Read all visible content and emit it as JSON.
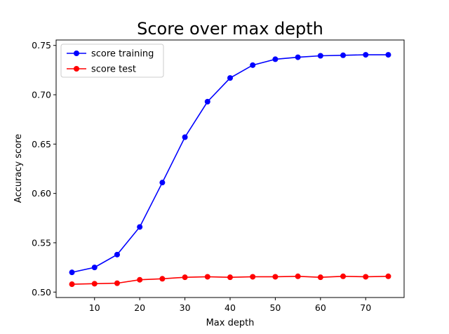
{
  "chart_data": {
    "type": "line",
    "title": "Score over max depth",
    "xlabel": "Max depth",
    "ylabel": "Accuracy score",
    "xlim": [
      1.5,
      78.5
    ],
    "ylim": [
      0.4945,
      0.7555
    ],
    "xticks": [
      10,
      20,
      30,
      40,
      50,
      60,
      70
    ],
    "xtick_labels": [
      "10",
      "20",
      "30",
      "40",
      "50",
      "60",
      "70"
    ],
    "yticks": [
      0.5,
      0.55,
      0.6,
      0.65,
      0.7,
      0.75
    ],
    "ytick_labels": [
      "0.50",
      "0.55",
      "0.60",
      "0.65",
      "0.70",
      "0.75"
    ],
    "grid": false,
    "legend_position": "upper-left",
    "x": [
      5,
      10,
      15,
      20,
      25,
      30,
      35,
      40,
      45,
      50,
      55,
      60,
      65,
      70,
      75
    ],
    "series": [
      {
        "name": "score training",
        "color": "#0000ff",
        "values": [
          0.52,
          0.525,
          0.538,
          0.566,
          0.611,
          0.657,
          0.693,
          0.717,
          0.73,
          0.736,
          0.738,
          0.7395,
          0.74,
          0.7405,
          0.7405
        ]
      },
      {
        "name": "score test",
        "color": "#ff0000",
        "values": [
          0.508,
          0.5085,
          0.509,
          0.5125,
          0.5135,
          0.515,
          0.5155,
          0.515,
          0.5155,
          0.5155,
          0.516,
          0.515,
          0.516,
          0.5155,
          0.516
        ]
      }
    ]
  }
}
